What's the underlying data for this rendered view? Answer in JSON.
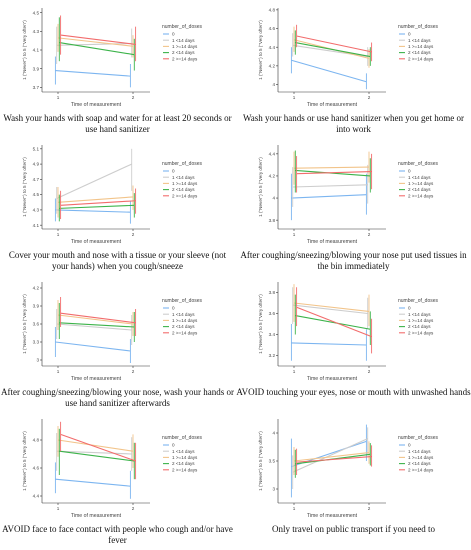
{
  "chart_data": [
    {
      "type": "line",
      "caption": "Wash your hands with soap and water for at least 20 seconds or use hand sanitizer",
      "ylabel": "1 (\"Never\") to 5 (\"Very often\")",
      "xlabel": "Time of measurement",
      "x": [
        "1",
        "2"
      ],
      "yticks": [
        3.7,
        3.9,
        4.1,
        4.3,
        4.5
      ],
      "ylim": [
        3.65,
        4.55
      ],
      "legend_title": "number_of_doses",
      "series": [
        {
          "name": "0",
          "color": "#7cb5f0",
          "values": [
            3.88,
            3.82
          ],
          "lower": [
            3.73,
            3.7
          ],
          "upper": [
            4.03,
            3.95
          ]
        },
        {
          "name": "1 <14 days",
          "color": "#cdcdcd",
          "values": [
            4.15,
            4.17
          ],
          "lower": [
            3.95,
            4.02
          ],
          "upper": [
            4.35,
            4.33
          ]
        },
        {
          "name": "1 >=14 days",
          "color": "#f2c48a",
          "values": [
            4.23,
            4.14
          ],
          "lower": [
            4.08,
            4.02
          ],
          "upper": [
            4.38,
            4.26
          ]
        },
        {
          "name": "2 <14 days",
          "color": "#3cb34a",
          "values": [
            4.18,
            4.05
          ],
          "lower": [
            3.98,
            3.88
          ],
          "upper": [
            4.45,
            4.22
          ]
        },
        {
          "name": "2 >=14 days",
          "color": "#f26c6c",
          "values": [
            4.26,
            4.16
          ],
          "lower": [
            4.05,
            3.98
          ],
          "upper": [
            4.47,
            4.35
          ]
        }
      ]
    },
    {
      "type": "line",
      "caption": "Wash your hands or use hand sanitizer when you get home or into work",
      "ylabel": "1 (\"Never\") to 5 (\"Very often\")",
      "xlabel": "Time of measurement",
      "x": [
        "1",
        "2"
      ],
      "yticks": [
        4.0,
        4.2,
        4.4,
        4.6,
        4.8
      ],
      "ylim": [
        3.92,
        4.82
      ],
      "legend_title": "number_of_doses",
      "series": [
        {
          "name": "0",
          "color": "#7cb5f0",
          "values": [
            4.26,
            4.03
          ],
          "lower": [
            4.12,
            3.95
          ],
          "upper": [
            4.4,
            4.12
          ]
        },
        {
          "name": "1 <14 days",
          "color": "#cdcdcd",
          "values": [
            4.42,
            4.3
          ],
          "lower": [
            4.3,
            4.2
          ],
          "upper": [
            4.55,
            4.4
          ]
        },
        {
          "name": "1 >=14 days",
          "color": "#f2c48a",
          "values": [
            4.48,
            4.28
          ],
          "lower": [
            4.35,
            4.18
          ],
          "upper": [
            4.62,
            4.38
          ]
        },
        {
          "name": "2 <14 days",
          "color": "#3cb34a",
          "values": [
            4.45,
            4.3
          ],
          "lower": [
            4.32,
            4.2
          ],
          "upper": [
            4.58,
            4.4
          ]
        },
        {
          "name": "2 >=14 days",
          "color": "#f26c6c",
          "values": [
            4.52,
            4.35
          ],
          "lower": [
            4.4,
            4.25
          ],
          "upper": [
            4.64,
            4.45
          ]
        }
      ]
    },
    {
      "type": "line",
      "caption": "Cover your mouth and nose with a tissue or your sleeve (not your hands) when you cough/sneeze",
      "ylabel": "1 (\"Never\") to 5 (\"Very often\")",
      "xlabel": "Time of measurement",
      "x": [
        "1",
        "2"
      ],
      "yticks": [
        4.1,
        4.3,
        4.5,
        4.7,
        4.9,
        5.1
      ],
      "ylim": [
        4.05,
        5.15
      ],
      "legend_title": "number_of_doses",
      "series": [
        {
          "name": "0",
          "color": "#7cb5f0",
          "values": [
            4.3,
            4.27
          ],
          "lower": [
            4.15,
            4.12
          ],
          "upper": [
            4.45,
            4.42
          ]
        },
        {
          "name": "1 <14 days",
          "color": "#cdcdcd",
          "values": [
            4.45,
            4.9
          ],
          "lower": [
            4.25,
            4.55
          ],
          "upper": [
            4.6,
            5.1
          ]
        },
        {
          "name": "1 >=14 days",
          "color": "#f2c48a",
          "values": [
            4.4,
            4.47
          ],
          "lower": [
            4.2,
            4.3
          ],
          "upper": [
            4.6,
            4.62
          ]
        },
        {
          "name": "2 <14 days",
          "color": "#3cb34a",
          "values": [
            4.32,
            4.36
          ],
          "lower": [
            4.15,
            4.2
          ],
          "upper": [
            4.5,
            4.52
          ]
        },
        {
          "name": "2 >=14 days",
          "color": "#f26c6c",
          "values": [
            4.36,
            4.42
          ],
          "lower": [
            4.18,
            4.25
          ],
          "upper": [
            4.55,
            4.58
          ]
        }
      ]
    },
    {
      "type": "line",
      "caption": "After coughing/sneezing/blowing your nose put used tissues in the bin immediately",
      "ylabel": "1 (\"Never\") to 5 (\"Very often\")",
      "xlabel": "Time of measurement",
      "x": [
        "1",
        "2"
      ],
      "yticks": [
        3.8,
        4.0,
        4.2,
        4.4
      ],
      "ylim": [
        3.72,
        4.48
      ],
      "legend_title": "number_of_doses",
      "series": [
        {
          "name": "0",
          "color": "#7cb5f0",
          "values": [
            4.0,
            4.03
          ],
          "lower": [
            3.8,
            3.85
          ],
          "upper": [
            4.22,
            4.22
          ]
        },
        {
          "name": "1 <14 days",
          "color": "#cdcdcd",
          "values": [
            4.1,
            4.12
          ],
          "lower": [
            3.92,
            3.95
          ],
          "upper": [
            4.28,
            4.3
          ]
        },
        {
          "name": "1 >=14 days",
          "color": "#f2c48a",
          "values": [
            4.27,
            4.28
          ],
          "lower": [
            4.12,
            4.14
          ],
          "upper": [
            4.42,
            4.42
          ]
        },
        {
          "name": "2 <14 days",
          "color": "#3cb34a",
          "values": [
            4.25,
            4.2
          ],
          "lower": [
            4.05,
            4.05
          ],
          "upper": [
            4.43,
            4.36
          ]
        },
        {
          "name": "2 >=14 days",
          "color": "#f26c6c",
          "values": [
            4.22,
            4.24
          ],
          "lower": [
            4.05,
            4.08
          ],
          "upper": [
            4.38,
            4.4
          ]
        }
      ]
    },
    {
      "type": "line",
      "caption": "After coughing/sneezing/blowing your nose, wash your hands or use hand sanitizer afterwards",
      "ylabel": "1 (\"Never\") to 5 (\"Very often\")",
      "xlabel": "Time of measurement",
      "x": [
        "1",
        "2"
      ],
      "yticks": [
        3.0,
        3.3,
        3.6,
        3.9,
        4.2
      ],
      "ylim": [
        2.9,
        4.3
      ],
      "legend_title": "number_of_doses",
      "series": [
        {
          "name": "0",
          "color": "#7cb5f0",
          "values": [
            3.3,
            3.15
          ],
          "lower": [
            3.05,
            2.95
          ],
          "upper": [
            3.55,
            3.35
          ]
        },
        {
          "name": "1 <14 days",
          "color": "#cdcdcd",
          "values": [
            3.6,
            3.5
          ],
          "lower": [
            3.35,
            3.25
          ],
          "upper": [
            3.85,
            3.75
          ]
        },
        {
          "name": "1 >=14 days",
          "color": "#f2c48a",
          "values": [
            3.75,
            3.6
          ],
          "lower": [
            3.5,
            3.4
          ],
          "upper": [
            4.0,
            3.8
          ]
        },
        {
          "name": "2 <14 days",
          "color": "#3cb34a",
          "values": [
            3.62,
            3.55
          ],
          "lower": [
            3.35,
            3.3
          ],
          "upper": [
            3.95,
            3.8
          ]
        },
        {
          "name": "2 >=14 days",
          "color": "#f26c6c",
          "values": [
            3.78,
            3.62
          ],
          "lower": [
            3.55,
            3.4
          ],
          "upper": [
            4.05,
            3.85
          ]
        }
      ]
    },
    {
      "type": "line",
      "caption": "AVOID touching your eyes, nose or mouth with unwashed hands",
      "ylabel": "1 (\"Never\") to 5 (\"Very often\")",
      "xlabel": "Time of measurement",
      "x": [
        "1",
        "2"
      ],
      "yticks": [
        3.2,
        3.4,
        3.6,
        3.8
      ],
      "ylim": [
        3.1,
        3.9
      ],
      "legend_title": "number_of_doses",
      "series": [
        {
          "name": "0",
          "color": "#7cb5f0",
          "values": [
            3.32,
            3.3
          ],
          "lower": [
            3.15,
            3.15
          ],
          "upper": [
            3.5,
            3.45
          ]
        },
        {
          "name": "1 <14 days",
          "color": "#cdcdcd",
          "values": [
            3.68,
            3.6
          ],
          "lower": [
            3.5,
            3.45
          ],
          "upper": [
            3.85,
            3.75
          ]
        },
        {
          "name": "1 >=14 days",
          "color": "#f2c48a",
          "values": [
            3.7,
            3.62
          ],
          "lower": [
            3.52,
            3.48
          ],
          "upper": [
            3.88,
            3.78
          ]
        },
        {
          "name": "2 <14 days",
          "color": "#3cb34a",
          "values": [
            3.58,
            3.45
          ],
          "lower": [
            3.4,
            3.3
          ],
          "upper": [
            3.78,
            3.62
          ]
        },
        {
          "name": "2 >=14 days",
          "color": "#f26c6c",
          "values": [
            3.66,
            3.38
          ],
          "lower": [
            3.48,
            3.22
          ],
          "upper": [
            3.85,
            3.55
          ]
        }
      ]
    },
    {
      "type": "line",
      "caption": "AVOID face to face contact with people who cough and/or have fever",
      "ylabel": "1 (\"Never\") to 5 (\"Very often\")",
      "xlabel": "Time of measurement",
      "x": [
        "1",
        "2"
      ],
      "yticks": [
        4.4,
        4.6,
        4.8
      ],
      "ylim": [
        4.35,
        4.95
      ],
      "legend_title": "number_of_doses",
      "series": [
        {
          "name": "0",
          "color": "#7cb5f0",
          "values": [
            4.52,
            4.47
          ],
          "lower": [
            4.42,
            4.38
          ],
          "upper": [
            4.64,
            4.58
          ]
        },
        {
          "name": "1 <14 days",
          "color": "#cdcdcd",
          "values": [
            4.72,
            4.7
          ],
          "lower": [
            4.58,
            4.58
          ],
          "upper": [
            4.85,
            4.82
          ]
        },
        {
          "name": "1 >=14 days",
          "color": "#f2c48a",
          "values": [
            4.8,
            4.72
          ],
          "lower": [
            4.68,
            4.6
          ],
          "upper": [
            4.9,
            4.84
          ]
        },
        {
          "name": "2 <14 days",
          "color": "#3cb34a",
          "values": [
            4.72,
            4.65
          ],
          "lower": [
            4.55,
            4.52
          ],
          "upper": [
            4.88,
            4.78
          ]
        },
        {
          "name": "2 >=14 days",
          "color": "#f26c6c",
          "values": [
            4.84,
            4.65
          ],
          "lower": [
            4.72,
            4.52
          ],
          "upper": [
            4.93,
            4.78
          ]
        }
      ]
    },
    {
      "type": "line",
      "caption": "Only travel on public transport if you need to",
      "ylabel": "1 (\"Never\") to 5 (\"Very often\")",
      "xlabel": "Time of measurement",
      "x": [
        "1",
        "2"
      ],
      "yticks": [
        3.0,
        3.5,
        4.0
      ],
      "ylim": [
        2.75,
        4.25
      ],
      "legend_title": "number_of_doses",
      "series": [
        {
          "name": "0",
          "color": "#7cb5f0",
          "values": [
            3.4,
            3.85
          ],
          "lower": [
            2.85,
            3.5
          ],
          "upper": [
            3.9,
            4.15
          ]
        },
        {
          "name": "1 <14 days",
          "color": "#cdcdcd",
          "values": [
            3.3,
            3.9
          ],
          "lower": [
            3.0,
            3.6
          ],
          "upper": [
            3.6,
            4.1
          ]
        },
        {
          "name": "1 >=14 days",
          "color": "#f2c48a",
          "values": [
            3.5,
            3.65
          ],
          "lower": [
            3.25,
            3.45
          ],
          "upper": [
            3.75,
            3.85
          ]
        },
        {
          "name": "2 <14 days",
          "color": "#3cb34a",
          "values": [
            3.45,
            3.62
          ],
          "lower": [
            3.2,
            3.42
          ],
          "upper": [
            3.7,
            3.82
          ]
        },
        {
          "name": "2 >=14 days",
          "color": "#f26c6c",
          "values": [
            3.48,
            3.58
          ],
          "lower": [
            3.25,
            3.4
          ],
          "upper": [
            3.72,
            3.78
          ]
        }
      ]
    }
  ]
}
